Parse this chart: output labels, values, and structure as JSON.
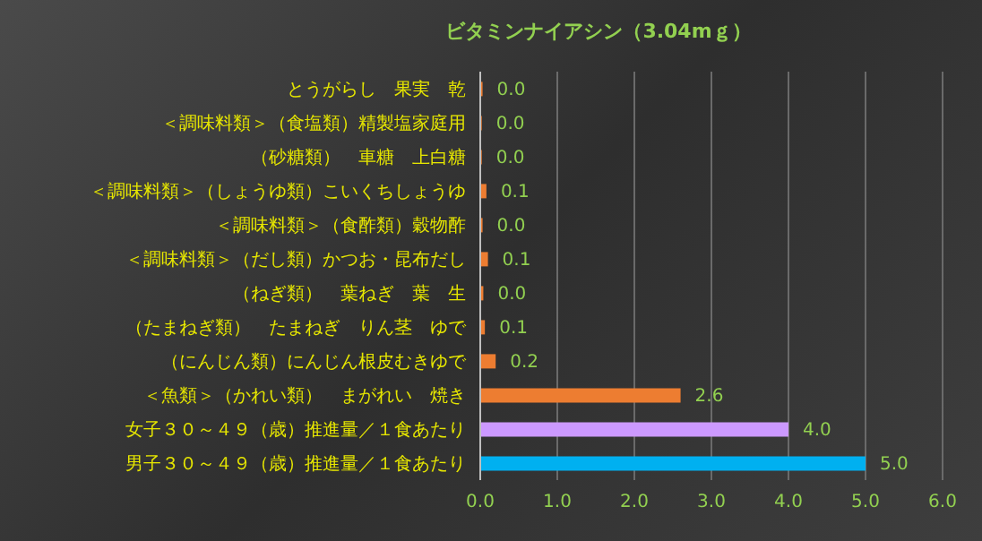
{
  "chart_data": {
    "type": "bar",
    "orientation": "horizontal",
    "title": "ビタミンナイアシン（3.04mｇ）",
    "categories": [
      "とうがらし　果実　乾",
      "＜調味料類＞（食塩類）精製塩家庭用",
      "（砂糖類）　車糖　上白糖",
      "＜調味料類＞（しょうゆ類）こいくちしょうゆ",
      "＜調味料類＞（食酢類）穀物酢",
      "＜調味料類＞（だし類）かつお・昆布だし",
      "（ねぎ類）　葉ねぎ　葉　生",
      "（たまねぎ類）　たまねぎ　りん茎　ゆで",
      "（にんじん類）にんじん根皮むきゆで",
      "＜魚類＞（かれい類）　まがれい　焼き",
      "女子３０～４９（歳）推進量／１食あたり",
      "男子３０～４９（歳）推進量／１食あたり"
    ],
    "values": [
      0.03,
      0.02,
      0.02,
      0.08,
      0.03,
      0.1,
      0.04,
      0.06,
      0.2,
      2.6,
      4.0,
      5.0
    ],
    "value_labels": [
      "0.0",
      "0.0",
      "0.0",
      "0.1",
      "0.0",
      "0.1",
      "0.0",
      "0.1",
      "0.2",
      "2.6",
      "4.0",
      "5.0"
    ],
    "colors": [
      "#ed7d31",
      "#ed7d31",
      "#ed7d31",
      "#ed7d31",
      "#ed7d31",
      "#ed7d31",
      "#ed7d31",
      "#ed7d31",
      "#ed7d31",
      "#ed7d31",
      "#cc99ff",
      "#00b0f0"
    ],
    "xlim": [
      0,
      6
    ],
    "xticks": [
      {
        "value": 0,
        "label": "0.0"
      },
      {
        "value": 1,
        "label": "1.0"
      },
      {
        "value": 2,
        "label": "2.0"
      },
      {
        "value": 3,
        "label": "3.0"
      },
      {
        "value": 4,
        "label": "4.0"
      },
      {
        "value": 5,
        "label": "5.0"
      },
      {
        "value": 6,
        "label": "6.0"
      }
    ],
    "grid": "x"
  }
}
